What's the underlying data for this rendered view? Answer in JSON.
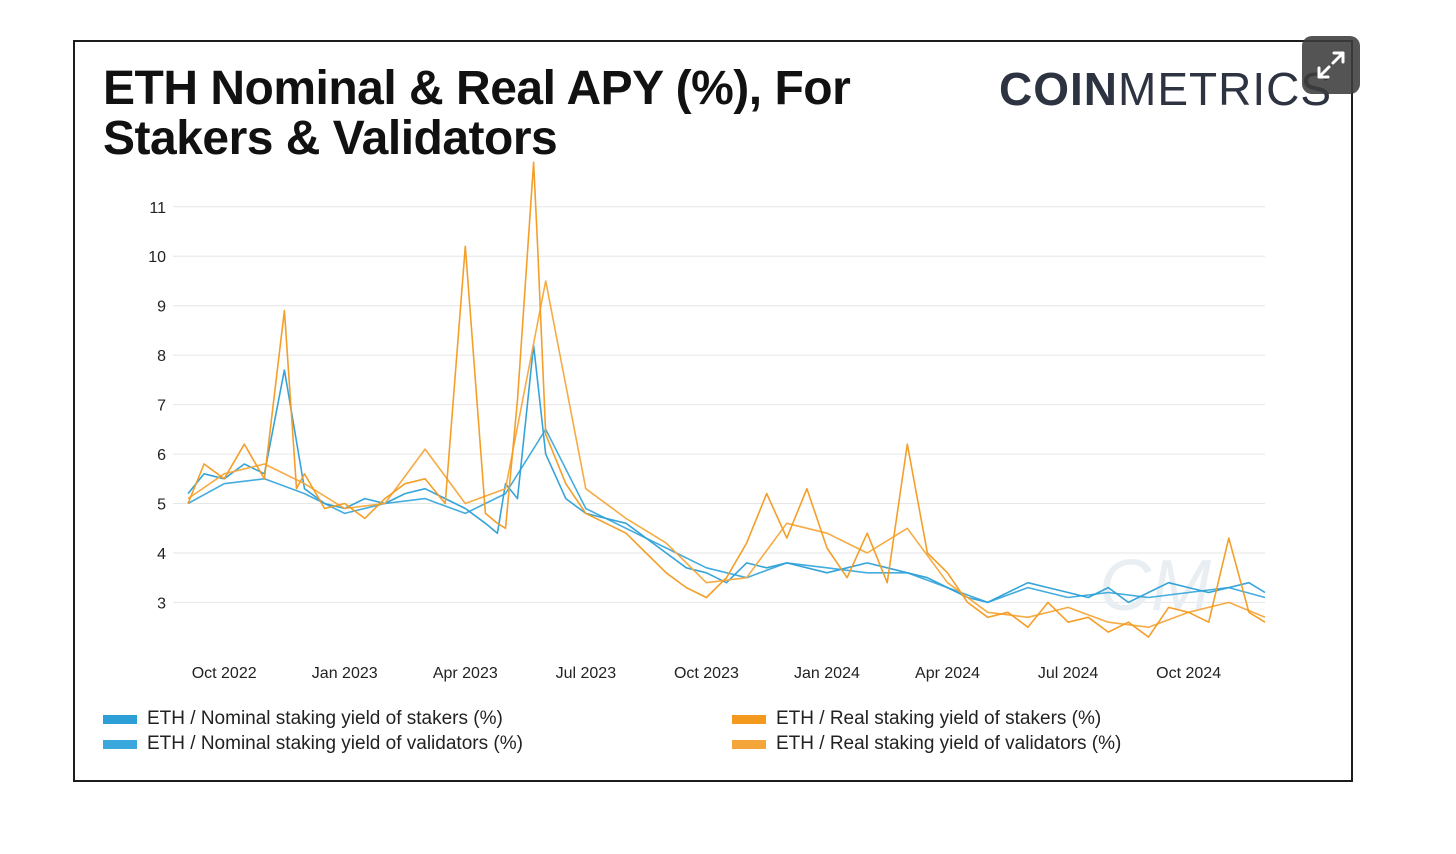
{
  "header": {
    "title": "ETH Nominal & Real APY (%), For Stakers & Validators",
    "logo_bold": "COIN",
    "logo_light": "METRICS",
    "expand_icon": "expand-arrows-icon"
  },
  "chart_data": {
    "type": "line",
    "title": "ETH Nominal & Real APY (%), For Stakers & Validators",
    "xlabel": "",
    "ylabel": "",
    "ylim": [
      2.2,
      11.4
    ],
    "yticks": [
      "11",
      "10",
      "9",
      "8",
      "7",
      "6",
      "5",
      "4",
      "3"
    ],
    "ytick_values": [
      11,
      10,
      9,
      8,
      7,
      6,
      5,
      4,
      3
    ],
    "xticks": [
      "Oct 2022",
      "Jan 2023",
      "Apr 2023",
      "Jul 2023",
      "Oct 2023",
      "Jan 2024",
      "Apr 2024",
      "Jul 2024",
      "Oct 2024"
    ],
    "xtick_months": [
      1,
      4,
      7,
      10,
      13,
      16,
      19,
      22,
      25
    ],
    "xlim_months": [
      0.1,
      26.9
    ],
    "x_unit": "months since Sep 2022",
    "grid": true,
    "legend_position": "bottom",
    "series": [
      {
        "name": "ETH / Nominal staking yield of stakers (%)",
        "color": "#2b9fd6",
        "x": [
          0.1,
          0.5,
          1.0,
          1.5,
          2.0,
          2.5,
          3.0,
          3.5,
          4.0,
          4.5,
          5.0,
          5.5,
          6.0,
          6.5,
          7.0,
          7.5,
          7.8,
          8.0,
          8.3,
          8.7,
          9.0,
          9.5,
          10.0,
          10.5,
          11.0,
          11.5,
          12.0,
          12.5,
          13.0,
          13.5,
          14.0,
          14.5,
          15.0,
          15.5,
          16.0,
          16.5,
          17.0,
          17.5,
          18.0,
          18.5,
          19.0,
          19.5,
          20.0,
          20.5,
          21.0,
          21.5,
          22.0,
          22.5,
          23.0,
          23.5,
          24.0,
          24.5,
          25.0,
          25.5,
          26.0,
          26.5,
          26.9
        ],
        "values": [
          5.2,
          5.6,
          5.5,
          5.8,
          5.6,
          7.7,
          5.3,
          5.0,
          4.9,
          5.1,
          5.0,
          5.2,
          5.3,
          5.1,
          4.9,
          4.6,
          4.4,
          5.4,
          5.1,
          8.2,
          6.0,
          5.1,
          4.8,
          4.7,
          4.6,
          4.3,
          4.0,
          3.7,
          3.6,
          3.4,
          3.8,
          3.7,
          3.8,
          3.7,
          3.6,
          3.7,
          3.8,
          3.7,
          3.6,
          3.5,
          3.3,
          3.1,
          3.0,
          3.2,
          3.4,
          3.3,
          3.2,
          3.1,
          3.3,
          3.0,
          3.2,
          3.4,
          3.3,
          3.2,
          3.3,
          3.4,
          3.2
        ]
      },
      {
        "name": "ETH / Nominal staking yield of validators (%)",
        "color": "#3aa8dc",
        "x": [
          0.1,
          1.0,
          2.0,
          3.0,
          4.0,
          5.0,
          6.0,
          7.0,
          8.0,
          9.0,
          10.0,
          11.0,
          12.0,
          13.0,
          14.0,
          15.0,
          16.0,
          17.0,
          18.0,
          19.0,
          20.0,
          21.0,
          22.0,
          23.0,
          24.0,
          25.0,
          26.0,
          26.9
        ],
        "values": [
          5.0,
          5.4,
          5.5,
          5.2,
          4.8,
          5.0,
          5.1,
          4.8,
          5.2,
          6.5,
          4.9,
          4.5,
          4.1,
          3.7,
          3.5,
          3.8,
          3.7,
          3.6,
          3.6,
          3.3,
          3.0,
          3.3,
          3.1,
          3.2,
          3.1,
          3.2,
          3.3,
          3.1
        ]
      },
      {
        "name": "ETH / Real staking yield of stakers (%)",
        "color": "#f39a1e",
        "x": [
          0.1,
          0.5,
          1.0,
          1.5,
          2.0,
          2.5,
          2.8,
          3.0,
          3.5,
          4.0,
          4.5,
          5.0,
          5.5,
          6.0,
          6.5,
          7.0,
          7.5,
          7.8,
          8.0,
          8.3,
          8.7,
          8.8,
          9.0,
          9.5,
          10.0,
          10.5,
          11.0,
          11.5,
          12.0,
          12.5,
          13.0,
          13.5,
          14.0,
          14.5,
          15.0,
          15.5,
          16.0,
          16.5,
          17.0,
          17.5,
          18.0,
          18.5,
          19.0,
          19.5,
          20.0,
          20.5,
          21.0,
          21.5,
          22.0,
          22.5,
          23.0,
          23.5,
          24.0,
          24.5,
          25.0,
          25.5,
          26.0,
          26.5,
          26.9
        ],
        "values": [
          5.0,
          5.8,
          5.5,
          6.2,
          5.5,
          8.9,
          5.3,
          5.6,
          4.9,
          5.0,
          4.7,
          5.1,
          5.4,
          5.5,
          5.0,
          10.2,
          4.8,
          4.6,
          4.5,
          7.1,
          11.9,
          10.2,
          6.4,
          5.4,
          4.8,
          4.6,
          4.4,
          4.0,
          3.6,
          3.3,
          3.1,
          3.5,
          4.2,
          5.2,
          4.3,
          5.3,
          4.1,
          3.5,
          4.4,
          3.4,
          6.2,
          4.0,
          3.6,
          3.0,
          2.7,
          2.8,
          2.5,
          3.0,
          2.6,
          2.7,
          2.4,
          2.6,
          2.3,
          2.9,
          2.8,
          2.6,
          4.3,
          2.8,
          2.6
        ]
      },
      {
        "name": "ETH / Real staking yield of validators (%)",
        "color": "#f5a63a",
        "x": [
          0.1,
          1.0,
          2.0,
          3.0,
          4.0,
          5.0,
          6.0,
          7.0,
          8.0,
          9.0,
          10.0,
          11.0,
          12.0,
          13.0,
          14.0,
          15.0,
          16.0,
          17.0,
          18.0,
          19.0,
          20.0,
          21.0,
          22.0,
          23.0,
          24.0,
          25.0,
          26.0,
          26.9
        ],
        "values": [
          5.1,
          5.6,
          5.8,
          5.4,
          4.9,
          5.0,
          6.1,
          5.0,
          5.3,
          9.5,
          5.3,
          4.7,
          4.2,
          3.4,
          3.5,
          4.6,
          4.4,
          4.0,
          4.5,
          3.4,
          2.8,
          2.7,
          2.9,
          2.6,
          2.5,
          2.8,
          3.0,
          2.7
        ]
      }
    ]
  }
}
